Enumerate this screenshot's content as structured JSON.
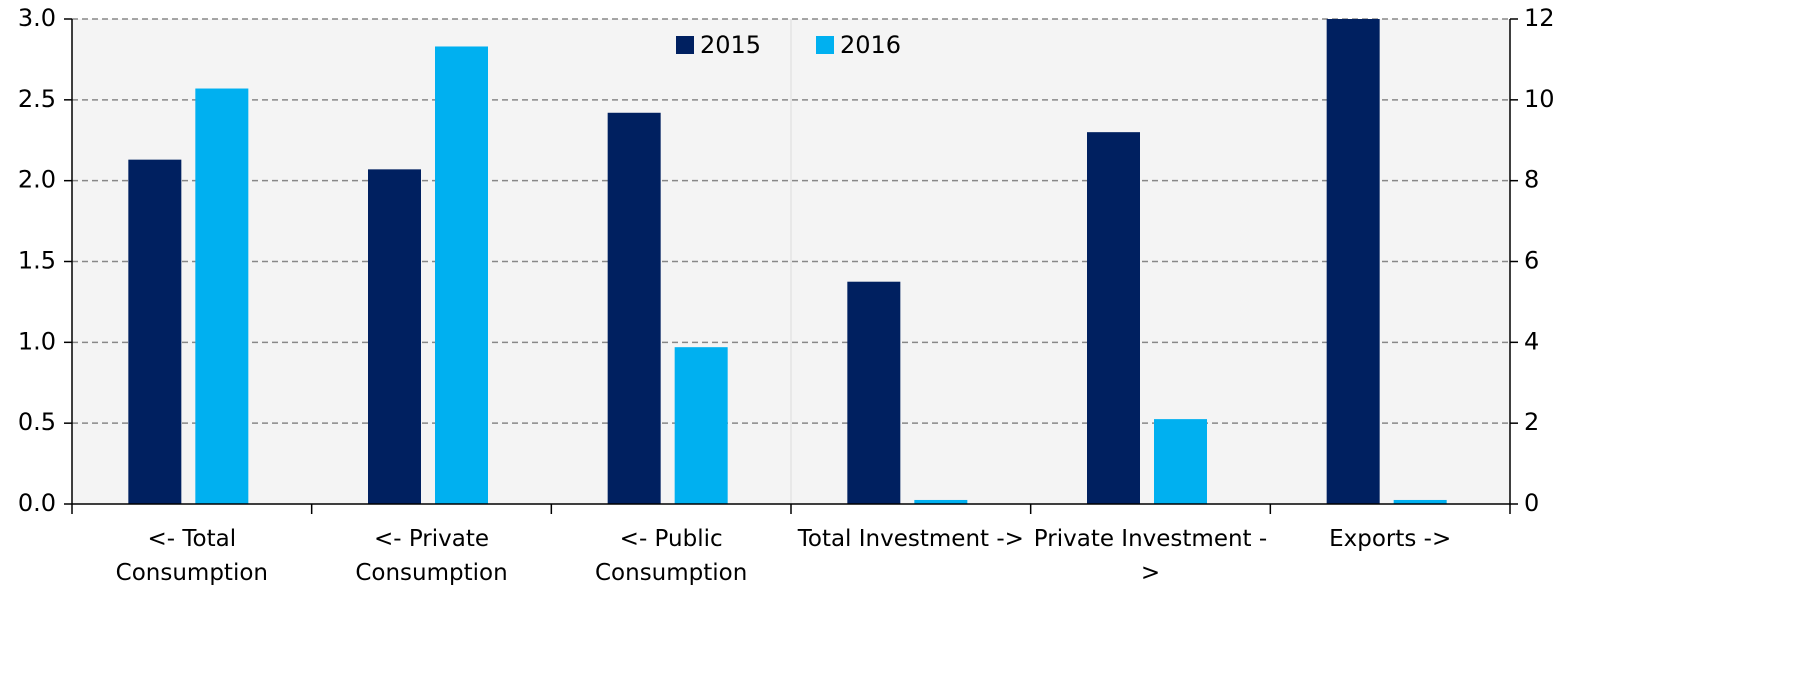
{
  "chart_data": {
    "type": "bar",
    "categories": [
      "<- Total Consumption",
      "<- Private Consumption",
      "<- Public Consumption",
      "Total Investment ->",
      "Private Investment ->",
      "Exports ->"
    ],
    "category_axis": [
      "y",
      "y",
      "y",
      "y2",
      "y2",
      "y2"
    ],
    "series": [
      {
        "name": "2015",
        "color": "#002060",
        "values": [
          2.13,
          2.07,
          2.42,
          5.5,
          9.2,
          12
        ]
      },
      {
        "name": "2016",
        "color": "#00b0f0",
        "values": [
          2.57,
          2.83,
          0.97,
          0.1,
          2.1,
          0.1
        ]
      }
    ],
    "ylim": [
      0,
      3
    ],
    "yticks": [
      {
        "value": 0,
        "label": "0.0"
      },
      {
        "value": 0.5,
        "label": "0.5"
      },
      {
        "value": 1,
        "label": "1.0"
      },
      {
        "value": 1.5,
        "label": "1.5"
      },
      {
        "value": 2,
        "label": "2.0"
      },
      {
        "value": 2.5,
        "label": "2.5"
      },
      {
        "value": 3,
        "label": "3.0"
      }
    ],
    "y2lim": [
      0,
      12
    ],
    "y2ticks": [
      0,
      2,
      4,
      6,
      8,
      10,
      12
    ],
    "grid": true,
    "legend": "top"
  }
}
